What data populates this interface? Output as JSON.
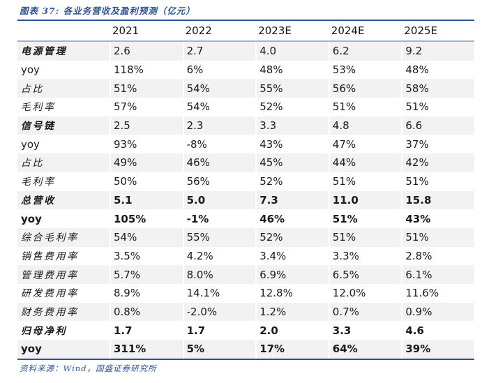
{
  "figure": {
    "title": "图表 37: 各业务营收及盈利预测（亿元）",
    "source": "资料来源：Wind，国盛证券研究所"
  },
  "colors": {
    "accent_blue": "#2e5395",
    "header_rule_blue": "#95b3d7",
    "row_shade_gray": "#f2f2f2",
    "text": "#1a1a1a"
  },
  "table": {
    "columns": [
      "2021",
      "2022",
      "2023E",
      "2024E",
      "2025E"
    ],
    "rows": [
      {
        "label": "电源管理",
        "cn": true,
        "bold_label": true,
        "bold_values": false,
        "shaded": true,
        "values": [
          "2.6",
          "2.7",
          "4.0",
          "6.2",
          "9.2"
        ]
      },
      {
        "label": "yoy",
        "cn": false,
        "bold_label": false,
        "bold_values": false,
        "shaded": false,
        "values": [
          "118%",
          "6%",
          "48%",
          "53%",
          "48%"
        ]
      },
      {
        "label": "占比",
        "cn": true,
        "bold_label": false,
        "bold_values": false,
        "shaded": true,
        "values": [
          "51%",
          "54%",
          "55%",
          "56%",
          "58%"
        ]
      },
      {
        "label": "毛利率",
        "cn": true,
        "bold_label": false,
        "bold_values": false,
        "shaded": false,
        "values": [
          "57%",
          "54%",
          "52%",
          "51%",
          "51%"
        ]
      },
      {
        "label": "信号链",
        "cn": true,
        "bold_label": true,
        "bold_values": false,
        "shaded": true,
        "values": [
          "2.5",
          "2.3",
          "3.3",
          "4.8",
          "6.6"
        ]
      },
      {
        "label": "yoy",
        "cn": false,
        "bold_label": false,
        "bold_values": false,
        "shaded": false,
        "values": [
          "93%",
          "-8%",
          "43%",
          "47%",
          "37%"
        ]
      },
      {
        "label": "占比",
        "cn": true,
        "bold_label": false,
        "bold_values": false,
        "shaded": true,
        "values": [
          "49%",
          "46%",
          "45%",
          "44%",
          "42%"
        ]
      },
      {
        "label": "毛利率",
        "cn": true,
        "bold_label": false,
        "bold_values": false,
        "shaded": false,
        "values": [
          "50%",
          "56%",
          "52%",
          "51%",
          "51%"
        ]
      },
      {
        "label": "总营收",
        "cn": true,
        "bold_label": true,
        "bold_values": true,
        "shaded": true,
        "values": [
          "5.1",
          "5.0",
          "7.3",
          "11.0",
          "15.8"
        ]
      },
      {
        "label": "yoy",
        "cn": false,
        "bold_label": true,
        "bold_values": true,
        "shaded": false,
        "values": [
          "105%",
          "-1%",
          "46%",
          "51%",
          "43%"
        ]
      },
      {
        "label": "综合毛利率",
        "cn": true,
        "bold_label": false,
        "bold_values": false,
        "shaded": true,
        "values": [
          "54%",
          "55%",
          "52%",
          "51%",
          "51%"
        ]
      },
      {
        "label": "销售费用率",
        "cn": true,
        "bold_label": false,
        "bold_values": false,
        "shaded": false,
        "values": [
          "3.5%",
          "4.2%",
          "3.4%",
          "3.3%",
          "2.8%"
        ]
      },
      {
        "label": "管理费用率",
        "cn": true,
        "bold_label": false,
        "bold_values": false,
        "shaded": true,
        "values": [
          "5.7%",
          "8.0%",
          "6.9%",
          "6.5%",
          "6.1%"
        ]
      },
      {
        "label": "研发费用率",
        "cn": true,
        "bold_label": false,
        "bold_values": false,
        "shaded": false,
        "values": [
          "8.9%",
          "14.1%",
          "12.8%",
          "12.0%",
          "11.6%"
        ]
      },
      {
        "label": "财务费用率",
        "cn": true,
        "bold_label": false,
        "bold_values": false,
        "shaded": true,
        "values": [
          "0.8%",
          "-2.0%",
          "1.2%",
          "0.7%",
          "0.9%"
        ]
      },
      {
        "label": "归母净利",
        "cn": true,
        "bold_label": true,
        "bold_values": true,
        "shaded": false,
        "values": [
          "1.7",
          "1.7",
          "2.0",
          "3.3",
          "4.6"
        ]
      },
      {
        "label": "yoy",
        "cn": false,
        "bold_label": true,
        "bold_values": true,
        "shaded": true,
        "values": [
          "311%",
          "5%",
          "17%",
          "64%",
          "39%"
        ]
      }
    ]
  }
}
